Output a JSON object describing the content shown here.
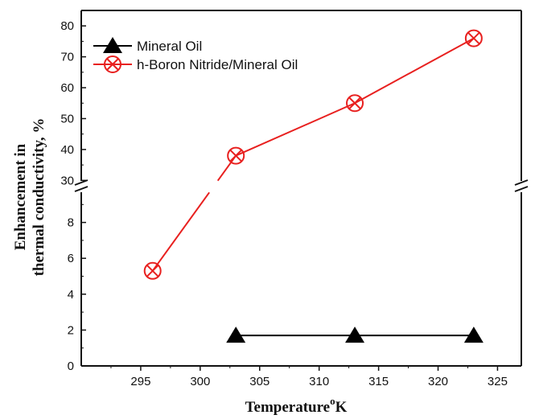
{
  "chart_data": {
    "type": "line",
    "xlabel": "Temperature",
    "xlabel_sup": "o",
    "xlabel_unit": "K",
    "ylabel_line1": "Enhancement in",
    "ylabel_line2": "thermal conductivity, %",
    "xlim": [
      290,
      327
    ],
    "x_ticks": [
      295,
      300,
      305,
      310,
      315,
      320,
      325
    ],
    "y_broken_axis": true,
    "ylim_lower": [
      0,
      10
    ],
    "y_ticks_lower": [
      0,
      2,
      4,
      6,
      8
    ],
    "ylim_upper": [
      28,
      85
    ],
    "y_ticks_upper": [
      30,
      40,
      50,
      60,
      70,
      80
    ],
    "legend_position": "top-left",
    "series": [
      {
        "name": "Mineral Oil",
        "color": "#000000",
        "marker": "triangle",
        "x": [
          303,
          313,
          323
        ],
        "y": [
          1.7,
          1.7,
          1.7
        ]
      },
      {
        "name": "h-Boron Nitride/Mineral Oil",
        "color": "#e8201f",
        "marker": "circle-x",
        "x": [
          296,
          303,
          313,
          323
        ],
        "y": [
          5.3,
          38,
          55,
          76
        ]
      }
    ]
  }
}
